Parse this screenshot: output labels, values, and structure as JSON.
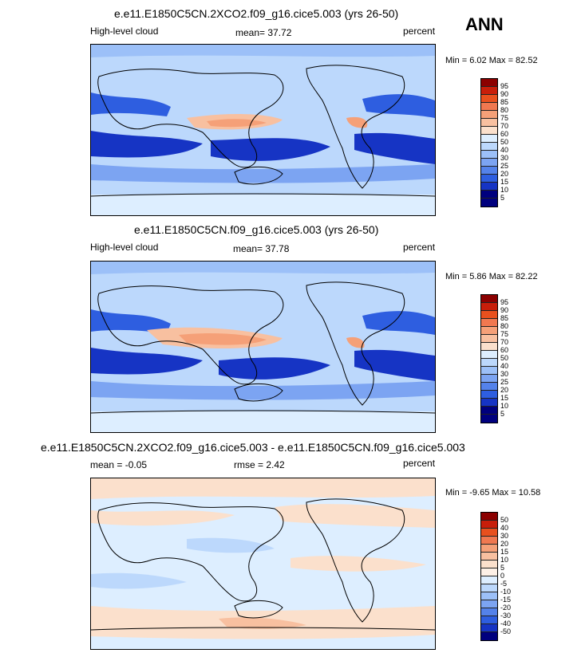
{
  "season": "ANN",
  "panels": [
    {
      "title": "e.e11.E1850C5CN.2XCO2.f09_g16.cice5.003 (yrs 26-50)",
      "left_label": "High-level cloud",
      "center_label": "mean=  37.72",
      "right_label": "percent",
      "minmax": "Min =   6.02 Max =  82.52",
      "levels": [
        "95",
        "90",
        "85",
        "80",
        "75",
        "70",
        "60",
        "50",
        "40",
        "30",
        "25",
        "20",
        "15",
        "10",
        "5"
      ],
      "colors": [
        "#8b0000",
        "#c81e0a",
        "#e8501e",
        "#f07850",
        "#f5a078",
        "#f8c0a0",
        "#fbe0cc",
        "#ddeeff",
        "#bcd8fc",
        "#9cc0f8",
        "#7ca4f2",
        "#5482ea",
        "#2e5ee0",
        "#1634c4",
        "#00007e",
        "#00007e"
      ]
    },
    {
      "title": "e.e11.E1850C5CN.f09_g16.cice5.003 (yrs 26-50)",
      "left_label": "High-level cloud",
      "center_label": "mean=  37.78",
      "right_label": "percent",
      "minmax": "Min =   5.86 Max =  82.22",
      "levels": [
        "95",
        "90",
        "85",
        "80",
        "75",
        "70",
        "60",
        "50",
        "40",
        "30",
        "25",
        "20",
        "15",
        "10",
        "5"
      ],
      "colors": [
        "#8b0000",
        "#c81e0a",
        "#e8501e",
        "#f07850",
        "#f5a078",
        "#f8c0a0",
        "#fbe0cc",
        "#ddeeff",
        "#bcd8fc",
        "#9cc0f8",
        "#7ca4f2",
        "#5482ea",
        "#2e5ee0",
        "#1634c4",
        "#00007e",
        "#00007e"
      ]
    },
    {
      "title": "e.e11.E1850C5CN.2XCO2.f09_g16.cice5.003 - e.e11.E1850C5CN.f09_g16.cice5.003",
      "left_label": "mean =  -0.05",
      "center_label": "rmse =   2.42",
      "right_label": "percent",
      "minmax": "Min =  -9.65 Max =  10.58",
      "levels": [
        "50",
        "40",
        "30",
        "20",
        "15",
        "10",
        "5",
        "0",
        "-5",
        "-10",
        "-15",
        "-20",
        "-30",
        "-40",
        "-50"
      ],
      "colors": [
        "#8b0000",
        "#c81e0a",
        "#e8501e",
        "#f07850",
        "#f5a078",
        "#f8c0a0",
        "#fbe0cc",
        "#fdf0e6",
        "#ddeeff",
        "#bcd8fc",
        "#9cc0f8",
        "#7ca4f2",
        "#5482ea",
        "#2e5ee0",
        "#1634c4",
        "#00007e"
      ]
    }
  ]
}
